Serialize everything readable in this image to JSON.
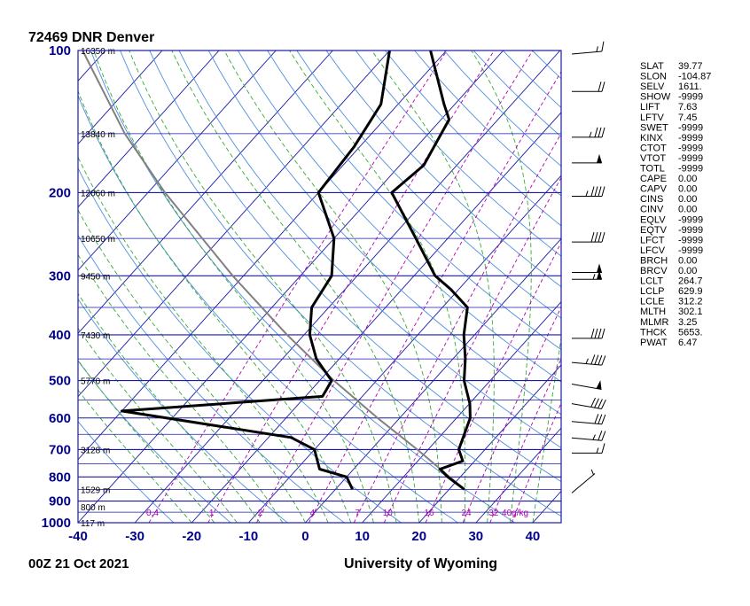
{
  "header": {
    "station": "72469 DNR Denver"
  },
  "footer": {
    "time": "00Z 21 Oct 2021",
    "source": "University of Wyoming"
  },
  "colors": {
    "isobar": "#1a1aaa",
    "isotherm": "#1a1aaa",
    "dry_adiabat": "#4f8fdf",
    "moist_adiabat": "#3aa83a",
    "mixing_ratio": "#b000b0",
    "sounding": "#000000",
    "parcel": "#808080"
  },
  "chart_data": {
    "type": "skew-t",
    "xlim": [
      -40,
      45
    ],
    "pressure_range": [
      1000,
      100
    ],
    "pressure_ticks": [
      "100",
      "200",
      "300",
      "400",
      "500",
      "600",
      "700",
      "800",
      "900",
      "1000"
    ],
    "temp_ticks": [
      "-40",
      "-30",
      "-20",
      "-10",
      "0",
      "10",
      "20",
      "30",
      "40"
    ],
    "heights": [
      {
        "p": 100,
        "label": "16350 m"
      },
      {
        "p": 150,
        "label": "13840 m"
      },
      {
        "p": 200,
        "label": "12060 m"
      },
      {
        "p": 250,
        "label": "10650 m"
      },
      {
        "p": 300,
        "label": "9450 m"
      },
      {
        "p": 400,
        "label": "7430 m"
      },
      {
        "p": 500,
        "label": "5770 m"
      },
      {
        "p": 700,
        "label": "3128 m"
      },
      {
        "p": 850,
        "label": "1529 m"
      },
      {
        "p": 925,
        "label": "800 m"
      },
      {
        "p": 1000,
        "label": "117 m"
      }
    ],
    "mixing_ratio_labels": [
      "0.4",
      "1",
      "2",
      "4",
      "7",
      "10",
      "16",
      "24",
      "32",
      "40g/kg"
    ],
    "mixing_ratio_values": [
      0.4,
      1,
      2,
      4,
      7,
      10,
      16,
      24,
      32,
      40
    ],
    "temperature": [
      {
        "p": 850,
        "t": 22.7
      },
      {
        "p": 800,
        "t": 17.8
      },
      {
        "p": 770,
        "t": 15.2
      },
      {
        "p": 740,
        "t": 17.9
      },
      {
        "p": 700,
        "t": 15.4
      },
      {
        "p": 600,
        "t": 12.4
      },
      {
        "p": 560,
        "t": 10.1
      },
      {
        "p": 500,
        "t": 5.4
      },
      {
        "p": 450,
        "t": 2.2
      },
      {
        "p": 400,
        "t": -1.9
      },
      {
        "p": 350,
        "t": -5.6
      },
      {
        "p": 320,
        "t": -11.5
      },
      {
        "p": 300,
        "t": -16.3
      },
      {
        "p": 250,
        "t": -25.6
      },
      {
        "p": 200,
        "t": -37.1
      },
      {
        "p": 175,
        "t": -35.8
      },
      {
        "p": 140,
        "t": -38.6
      },
      {
        "p": 130,
        "t": -41.9
      },
      {
        "p": 100,
        "t": -52.8
      }
    ],
    "dewpoint": [
      {
        "p": 850,
        "t": 3.0
      },
      {
        "p": 800,
        "t": 0.0
      },
      {
        "p": 770,
        "t": -6.0
      },
      {
        "p": 700,
        "t": -10.0
      },
      {
        "p": 660,
        "t": -16.0
      },
      {
        "p": 580,
        "t": -50.0
      },
      {
        "p": 540,
        "t": -17.0
      },
      {
        "p": 500,
        "t": -17.9
      },
      {
        "p": 450,
        "t": -24.0
      },
      {
        "p": 400,
        "t": -29.0
      },
      {
        "p": 350,
        "t": -33.0
      },
      {
        "p": 300,
        "t": -34.5
      },
      {
        "p": 250,
        "t": -40.0
      },
      {
        "p": 200,
        "t": -50.0
      },
      {
        "p": 160,
        "t": -51.0
      },
      {
        "p": 130,
        "t": -53.0
      },
      {
        "p": 100,
        "t": -60.0
      }
    ],
    "parcel": [
      {
        "p": 850,
        "t": 22.7
      },
      {
        "p": 700,
        "t": 8.1
      },
      {
        "p": 600,
        "t": -3.9
      },
      {
        "p": 500,
        "t": -17.5
      },
      {
        "p": 400,
        "t": -33.0
      },
      {
        "p": 300,
        "t": -51.9
      },
      {
        "p": 200,
        "t": -77.0
      },
      {
        "p": 150,
        "t": -93.4
      },
      {
        "p": 100,
        "t": -114.0
      }
    ],
    "wind_barbs": [
      {
        "p": 850,
        "speed": 5,
        "dir": 230
      },
      {
        "p": 700,
        "speed": 15,
        "dir": 270
      },
      {
        "p": 650,
        "speed": 25,
        "dir": 275
      },
      {
        "p": 600,
        "speed": 30,
        "dir": 275
      },
      {
        "p": 550,
        "speed": 40,
        "dir": 280
      },
      {
        "p": 500,
        "speed": 50,
        "dir": 280
      },
      {
        "p": 450,
        "speed": 45,
        "dir": 275
      },
      {
        "p": 400,
        "speed": 40,
        "dir": 270
      },
      {
        "p": 300,
        "speed": 55,
        "dir": 270
      },
      {
        "p": 290,
        "speed": 50,
        "dir": 270
      },
      {
        "p": 250,
        "speed": 40,
        "dir": 270
      },
      {
        "p": 200,
        "speed": 45,
        "dir": 270
      },
      {
        "p": 170,
        "speed": 50,
        "dir": 270
      },
      {
        "p": 150,
        "speed": 35,
        "dir": 270
      },
      {
        "p": 120,
        "speed": 20,
        "dir": 270
      },
      {
        "p": 100,
        "speed": 15,
        "dir": 265
      }
    ],
    "indices": [
      {
        "key": "SLAT",
        "value": "39.77"
      },
      {
        "key": "SLON",
        "value": "-104.87"
      },
      {
        "key": "SELV",
        "value": "1611."
      },
      {
        "key": "SHOW",
        "value": "-9999"
      },
      {
        "key": "LIFT",
        "value": "7.63"
      },
      {
        "key": "LFTV",
        "value": "7.45"
      },
      {
        "key": "SWET",
        "value": "-9999"
      },
      {
        "key": "KINX",
        "value": "-9999"
      },
      {
        "key": "CTOT",
        "value": "-9999"
      },
      {
        "key": "VTOT",
        "value": "-9999"
      },
      {
        "key": "TOTL",
        "value": "-9999"
      },
      {
        "key": "CAPE",
        "value": "0.00"
      },
      {
        "key": "CAPV",
        "value": "0.00"
      },
      {
        "key": "CINS",
        "value": "0.00"
      },
      {
        "key": "CINV",
        "value": "0.00"
      },
      {
        "key": "EQLV",
        "value": "-9999"
      },
      {
        "key": "EQTV",
        "value": "-9999"
      },
      {
        "key": "LFCT",
        "value": "-9999"
      },
      {
        "key": "LFCV",
        "value": "-9999"
      },
      {
        "key": "BRCH",
        "value": "0.00"
      },
      {
        "key": "BRCV",
        "value": "0.00"
      },
      {
        "key": "LCLT",
        "value": "264.7"
      },
      {
        "key": "LCLP",
        "value": "629.9"
      },
      {
        "key": "LCLE",
        "value": "312.2"
      },
      {
        "key": "MLTH",
        "value": "302.1"
      },
      {
        "key": "MLMR",
        "value": "3.25"
      },
      {
        "key": "THCK",
        "value": "5653."
      },
      {
        "key": "PWAT",
        "value": "6.47"
      }
    ]
  }
}
